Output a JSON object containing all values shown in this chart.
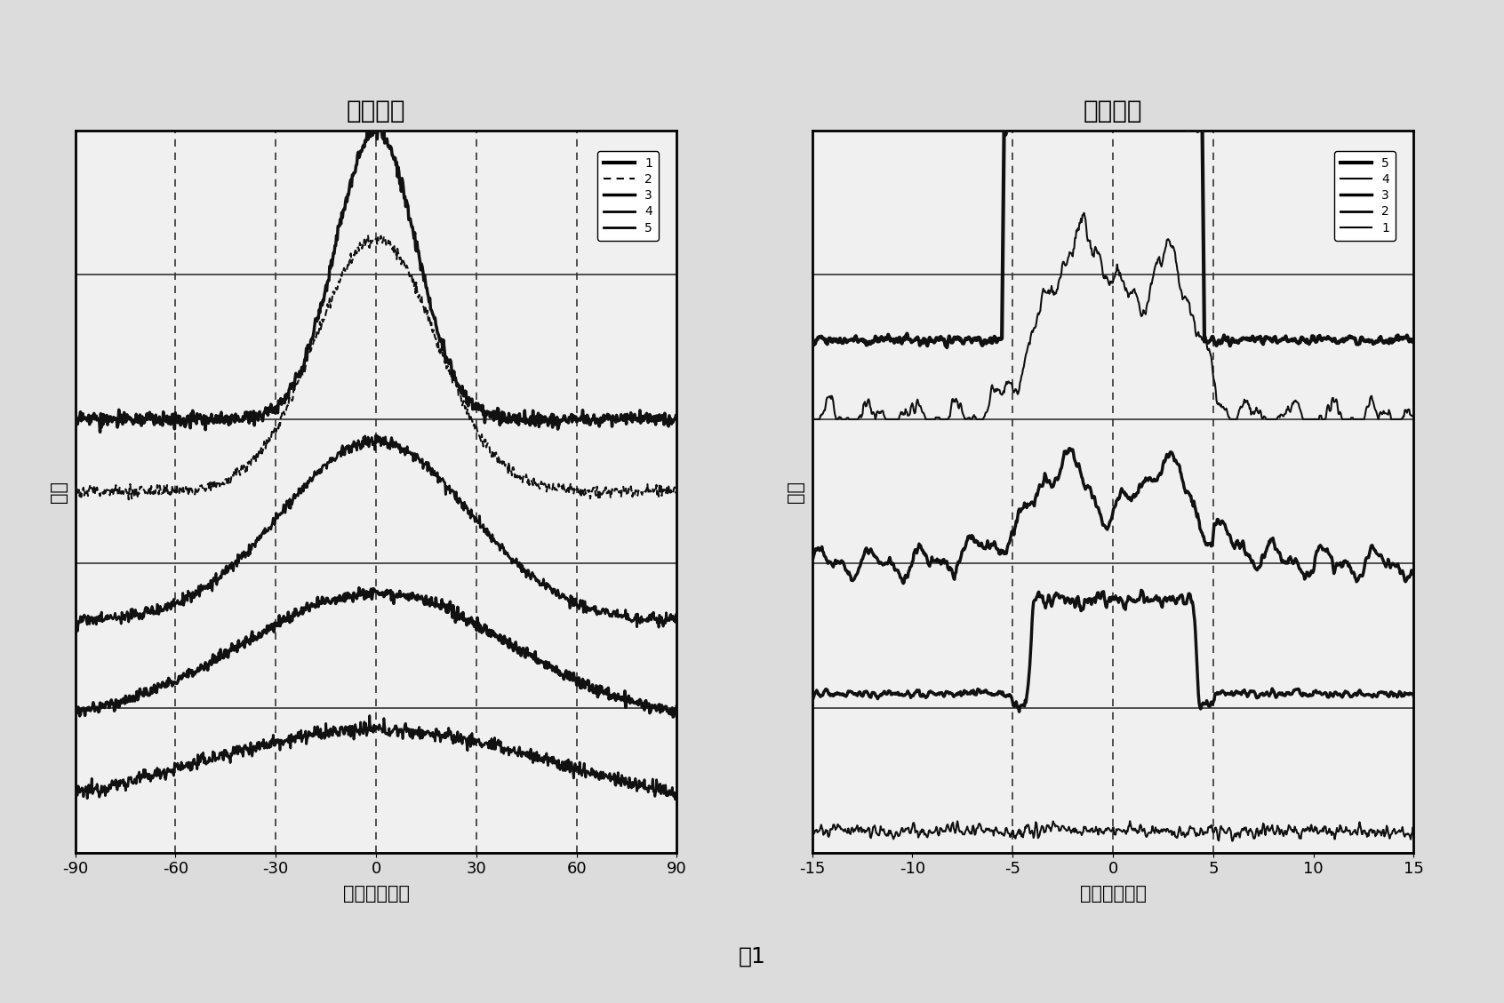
{
  "title_left": "快轴方向",
  "title_right": "慢轴方向",
  "xlabel": "角度／（度）",
  "ylabel": "能量",
  "caption": "图1",
  "left": {
    "xlim": [
      -90,
      90
    ],
    "xticks": [
      -90,
      -60,
      -30,
      0,
      30,
      60,
      90
    ],
    "vlines": [
      -60,
      -30,
      0,
      30,
      60
    ],
    "ylim": [
      0,
      10
    ],
    "hlines": [
      0,
      2,
      4,
      6,
      8,
      10
    ]
  },
  "right": {
    "xlim": [
      -15,
      15
    ],
    "xticks": [
      -15,
      -10,
      -5,
      0,
      5,
      10,
      15
    ],
    "vlines": [
      -5,
      0,
      5
    ],
    "ylim": [
      0,
      10
    ],
    "hlines": [
      0,
      2,
      4,
      6,
      8,
      10
    ]
  },
  "bg_color": "#e8e8e8",
  "plot_bg": "#f5f5f5",
  "line_color": "#111111",
  "grid_color": "#555555"
}
